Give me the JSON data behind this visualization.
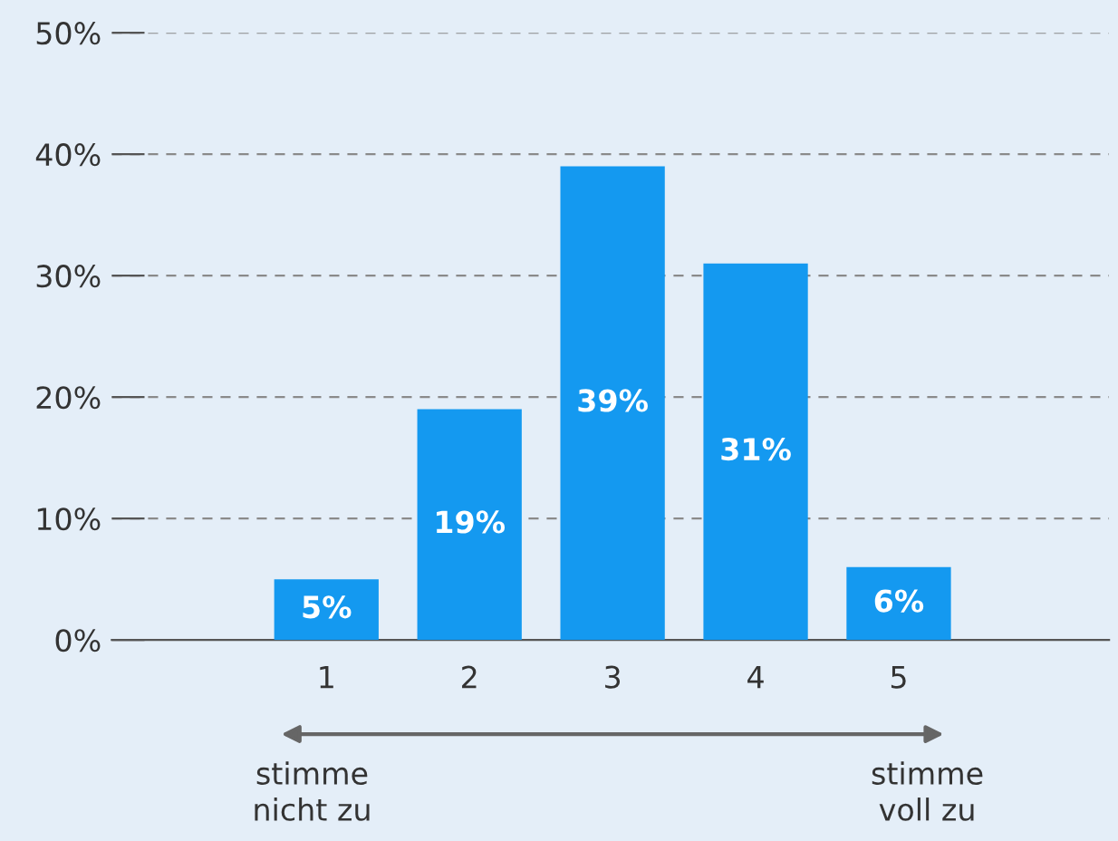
{
  "chart_data": {
    "type": "bar",
    "categories": [
      "1",
      "2",
      "3",
      "4",
      "5"
    ],
    "values": [
      5,
      19,
      39,
      31,
      6
    ],
    "color": "#1499f0",
    "ylim": [
      0,
      50
    ],
    "yticks": [
      {
        "value": 0,
        "label": "0%"
      },
      {
        "value": 10,
        "label": "10%"
      },
      {
        "value": 20,
        "label": "20%"
      },
      {
        "value": 30,
        "label": "30%"
      },
      {
        "value": 40,
        "label": "40%"
      },
      {
        "value": 50,
        "label": "50%"
      }
    ],
    "grid": "y",
    "value_labels": [
      "5%",
      "19%",
      "39%",
      "31%",
      "6%"
    ],
    "annotations": [
      "stimme\nnicht zu",
      "stimme\nvoll zu"
    ]
  }
}
